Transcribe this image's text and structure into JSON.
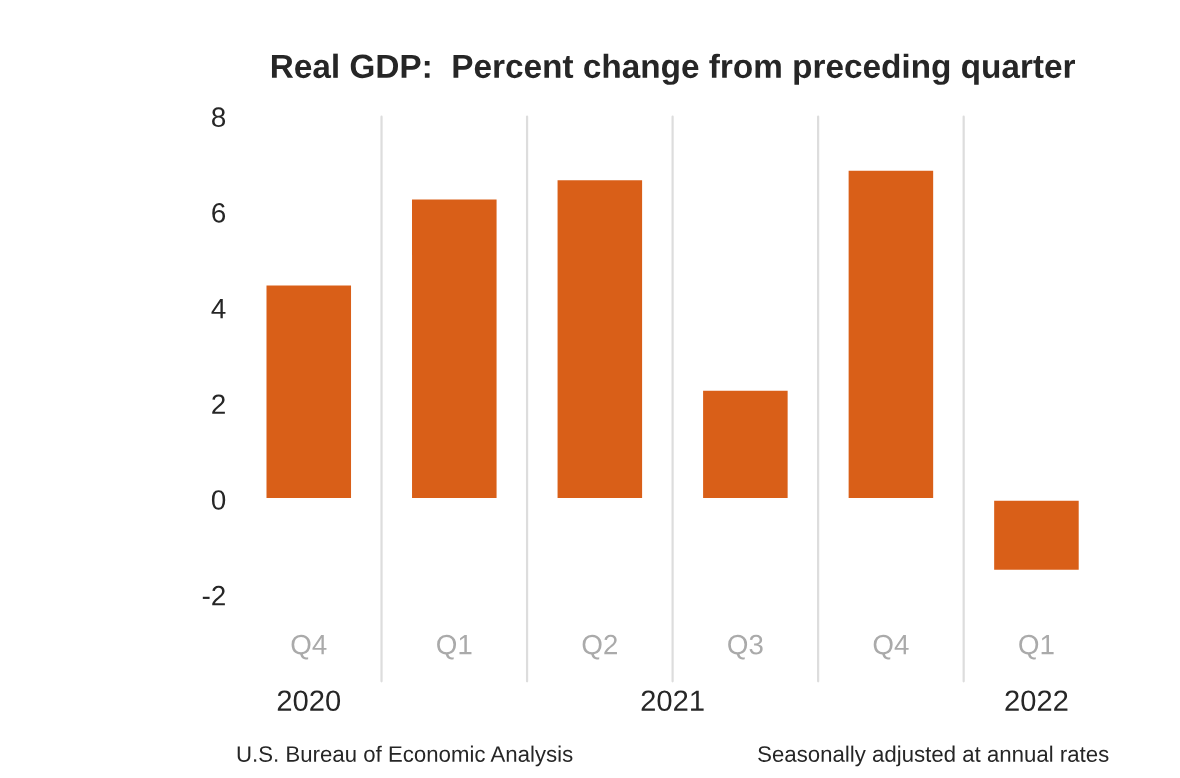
{
  "chart_data": {
    "type": "bar",
    "title": "Real GDP:  Percent change from preceding quarter",
    "categories": [
      "Q4",
      "Q1",
      "Q2",
      "Q3",
      "Q4",
      "Q1"
    ],
    "values": [
      4.5,
      6.3,
      6.7,
      2.3,
      6.9,
      -1.5
    ],
    "color": "#d95f18",
    "ylim": [
      -2,
      8
    ],
    "yticks": [
      -2,
      0,
      2,
      4,
      6,
      8
    ],
    "grid": "x",
    "annotations": [
      "2020",
      "2021",
      "2022",
      "U.S. Bureau of Economic Analysis",
      "Seasonally adjusted at annual rates"
    ]
  }
}
